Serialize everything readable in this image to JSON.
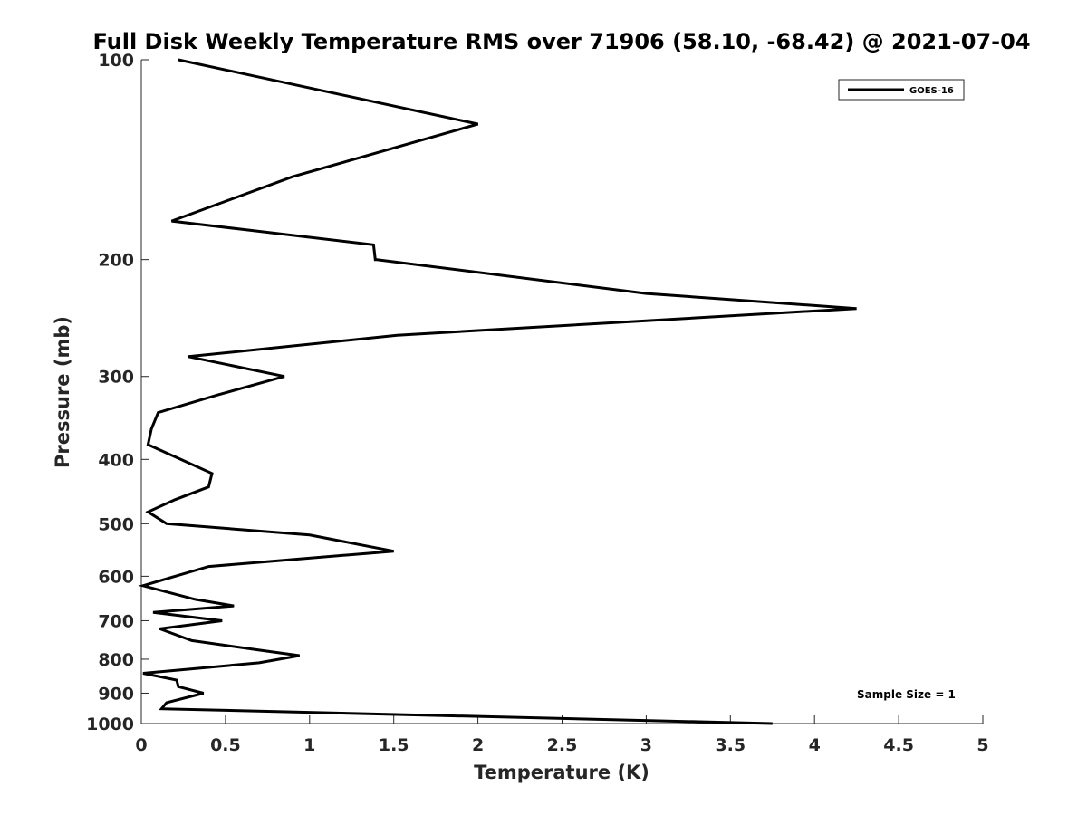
{
  "chart_data": {
    "type": "line",
    "title": "Full Disk Weekly Temperature RMS over 71906 (58.10, -68.42) @ 2021-07-04",
    "xlabel": "Temperature (K)",
    "ylabel": "Pressure (mb)",
    "xlim": [
      0,
      5
    ],
    "ylim": [
      100,
      1000
    ],
    "y_scale": "log",
    "y_reversed": true,
    "x_ticks": [
      "0",
      "0.5",
      "1",
      "1.5",
      "2",
      "2.5",
      "3",
      "3.5",
      "4",
      "4.5",
      "5"
    ],
    "y_ticks": [
      "100",
      "200",
      "300",
      "400",
      "500",
      "600",
      "700",
      "800",
      "900",
      "1000"
    ],
    "grid": false,
    "legend_position": "top-right",
    "annotation": "Sample Size = 1",
    "series": [
      {
        "name": "GOES-16",
        "color": "#000000",
        "points": [
          [
            0.22,
            100
          ],
          [
            2.0,
            125
          ],
          [
            0.9,
            150
          ],
          [
            0.18,
            175
          ],
          [
            1.38,
            190
          ],
          [
            1.39,
            200
          ],
          [
            1.4,
            200
          ],
          [
            3.0,
            225
          ],
          [
            4.25,
            237
          ],
          [
            1.52,
            260
          ],
          [
            0.28,
            280
          ],
          [
            0.85,
            300
          ],
          [
            0.45,
            320
          ],
          [
            0.1,
            340
          ],
          [
            0.06,
            360
          ],
          [
            0.04,
            380
          ],
          [
            0.42,
            420
          ],
          [
            0.4,
            440
          ],
          [
            0.2,
            460
          ],
          [
            0.04,
            480
          ],
          [
            0.15,
            500
          ],
          [
            1.0,
            520
          ],
          [
            1.5,
            550
          ],
          [
            0.4,
            580
          ],
          [
            0.2,
            600
          ],
          [
            0.01,
            620
          ],
          [
            0.32,
            650
          ],
          [
            0.55,
            665
          ],
          [
            0.07,
            680
          ],
          [
            0.48,
            700
          ],
          [
            0.11,
            720
          ],
          [
            0.3,
            750
          ],
          [
            0.7,
            775
          ],
          [
            0.94,
            790
          ],
          [
            0.7,
            810
          ],
          [
            0.01,
            840
          ],
          [
            0.21,
            860
          ],
          [
            0.22,
            880
          ],
          [
            0.37,
            900
          ],
          [
            0.15,
            930
          ],
          [
            0.12,
            950
          ],
          [
            3.75,
            1000
          ]
        ]
      }
    ]
  }
}
